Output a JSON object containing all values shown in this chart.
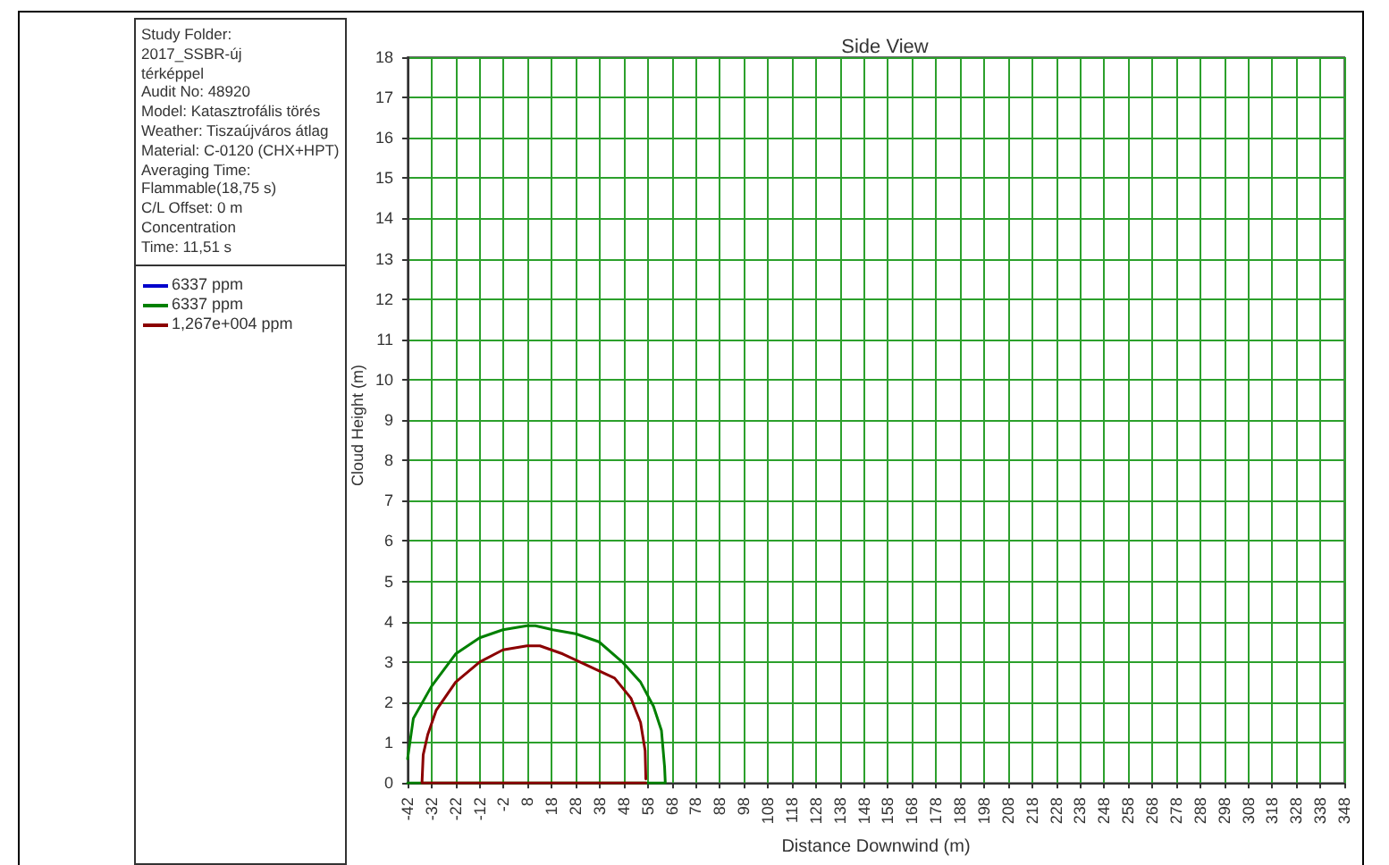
{
  "chart_data": {
    "type": "line",
    "title": "Side View",
    "xlabel": "Distance Downwind (m)",
    "ylabel": "Cloud Height (m)",
    "annotations": [
      "Study Folder:",
      "2017_SSBR-új",
      "térképpel",
      "Audit No: 48920",
      "Model: Katasztrofális törés",
      "Weather: Tiszaújváros átlag",
      "Material: C-0120 (CHX+HPT)",
      "Averaging Time:",
      "Flammable(18,75 s)",
      "C/L Offset: 0 m",
      "Concentration",
      "Time: 11,51 s"
    ],
    "series": [
      {
        "name": "6337 ppm",
        "color": "#0000cc"
      },
      {
        "name": "6337 ppm",
        "color": "#008000",
        "x": [
          -42,
          -39.6,
          -32,
          -22,
          -12,
          -2.3,
          7.7,
          11.2,
          18.5,
          28,
          37.7,
          47.4,
          55,
          60.4,
          63.7,
          65,
          65.3,
          -42
        ],
        "values": [
          0.6,
          1.6,
          2.4,
          3.2,
          3.6,
          3.8,
          3.9,
          3.9,
          3.8,
          3.7,
          3.5,
          3,
          2.5,
          1.9,
          1.3,
          0.4,
          0,
          0
        ]
      },
      {
        "name": "1,267e+004 ppm",
        "color": "#8b0000",
        "x": [
          57.2,
          -36,
          -35.5,
          -33.6,
          -30.1,
          -22,
          -12,
          -2.3,
          7.7,
          13.1,
          22.6,
          33.4,
          44.2,
          51,
          55,
          56.9,
          57.2
        ],
        "values": [
          0,
          0,
          0.7,
          1.2,
          1.8,
          2.5,
          3,
          3.3,
          3.4,
          3.4,
          3.2,
          2.9,
          2.6,
          2.1,
          1.5,
          0.8,
          0.1
        ]
      }
    ],
    "xlim": [
      -42,
      348
    ],
    "xticks": [
      -42,
      -32,
      -22,
      -12,
      -2,
      8,
      18,
      28,
      38,
      48,
      58,
      68,
      78,
      88,
      98,
      108,
      118,
      128,
      138,
      148,
      158,
      168,
      178,
      188,
      198,
      208,
      218,
      228,
      238,
      248,
      258,
      268,
      278,
      288,
      298,
      308,
      318,
      328,
      338,
      348
    ],
    "ylim": [
      0,
      18
    ],
    "yticks": [
      0,
      1,
      2,
      3,
      4,
      5,
      6,
      7,
      8,
      9,
      10,
      11,
      12,
      13,
      14,
      15,
      16,
      17,
      18
    ],
    "grid": true,
    "legend": "left",
    "marker": "none",
    "line_style": "solid"
  }
}
